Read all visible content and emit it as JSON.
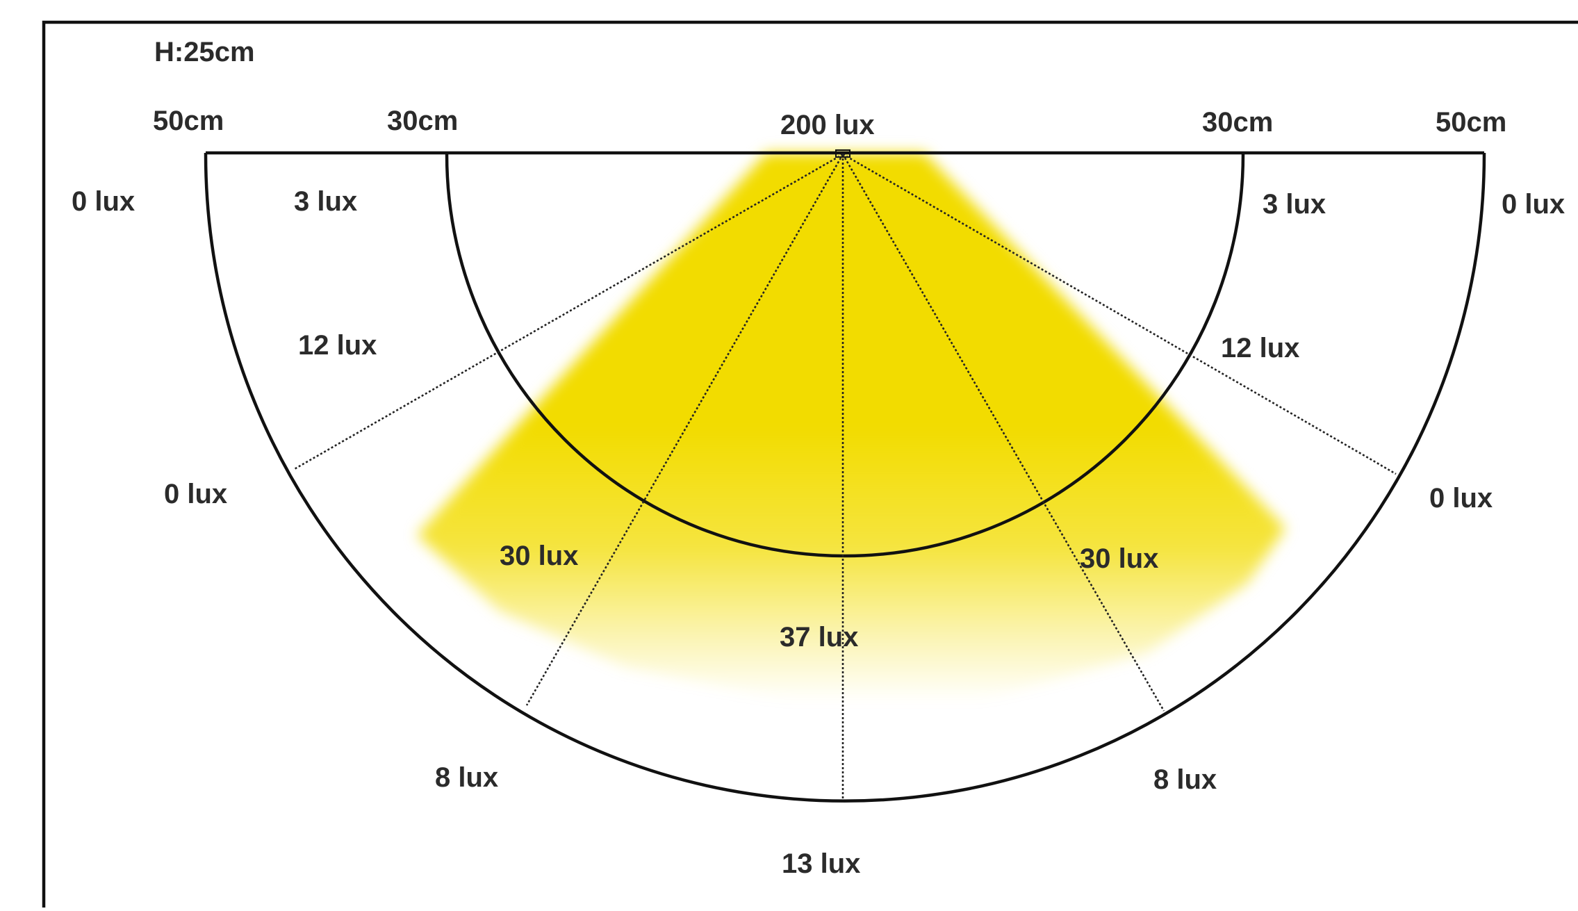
{
  "height_label": "H:25cm",
  "distance_labels": {
    "left_outer": "50cm",
    "left_inner": "30cm",
    "right_inner": "30cm",
    "right_outer": "50cm"
  },
  "center_label": "200 lux",
  "illuminance_labels": {
    "outer_top_left": "0 lux",
    "outer_top_right": "0 lux",
    "inner_top_left": "3 lux",
    "inner_top_right": "3 lux",
    "inner_upper_left": "12 lux",
    "inner_upper_right": "12 lux",
    "outer_mid_left": "0 lux",
    "outer_mid_right": "0 lux",
    "inner_lower_left": "30 lux",
    "inner_lower_right": "30 lux",
    "inner_center": "37 lux",
    "outer_lower_left": "8 lux",
    "outer_lower_right": "8 lux",
    "outer_bottom": "13 lux"
  },
  "colors": {
    "beam": "#f2dc00",
    "lines": "#111111",
    "text": "#2b2b2b",
    "background": "#ffffff"
  }
}
